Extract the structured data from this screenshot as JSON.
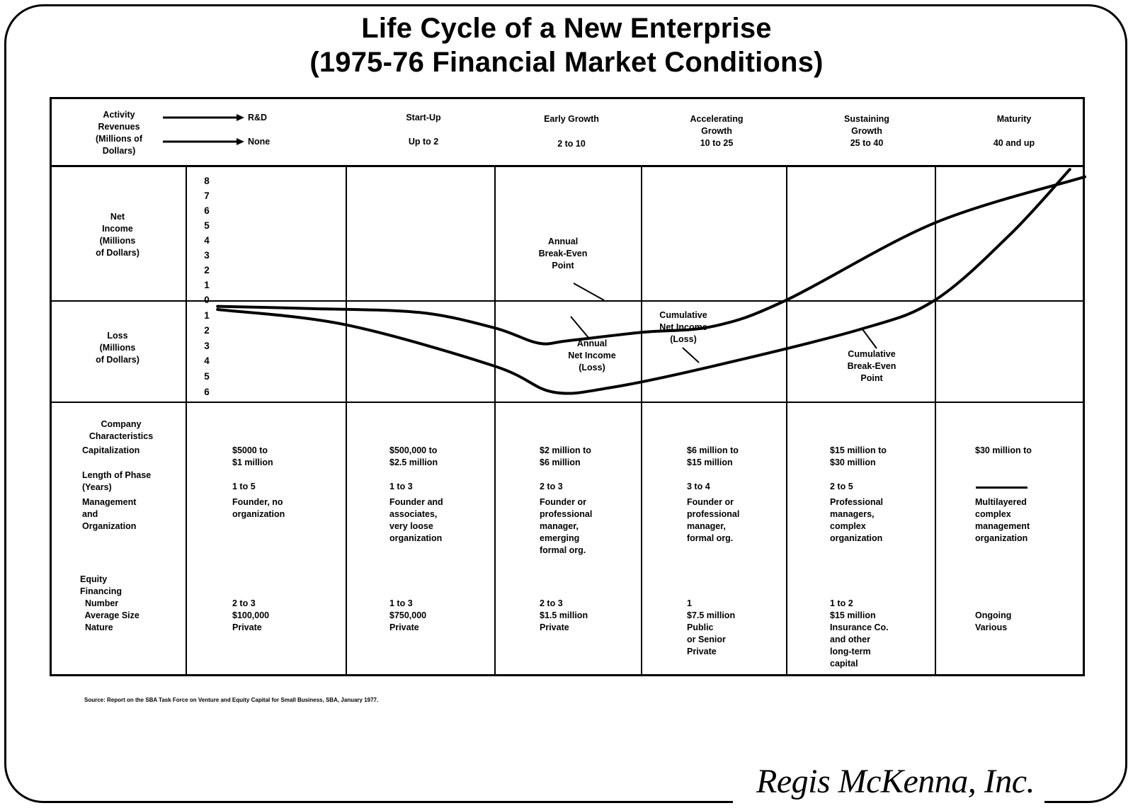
{
  "title": {
    "line1": "Life Cycle of a New Enterprise",
    "line2": "(1975-76 Financial Market Conditions)"
  },
  "header": {
    "activity_label": "Activity",
    "revenues_label": "Revenues\n(Millions of\nDollars)",
    "first_activity": "R&D",
    "first_revenue": "None"
  },
  "phases": [
    {
      "name": "R&D",
      "revenue": "None",
      "capitalization": "$5000 to\n$1 million",
      "length": "1 to 5",
      "management": "Founder, no\norganization",
      "equity": "2 to 3\n$100,000\nPrivate"
    },
    {
      "name": "Start-Up",
      "revenue": "Up to 2",
      "capitalization": "$500,000 to\n$2.5 million",
      "length": "1 to 3",
      "management": "Founder and\nassociates,\nvery loose\norganization",
      "equity": "1 to 3\n$750,000\nPrivate"
    },
    {
      "name": "Early Growth",
      "revenue": "2 to 10",
      "capitalization": "$2 million to\n$6 million",
      "length": "2 to 3",
      "management": "Founder or\nprofessional\nmanager,\nemerging\nformal org.",
      "equity": "2 to 3\n$1.5 million\nPrivate"
    },
    {
      "name": "Accelerating\nGrowth",
      "revenue": "10 to 25",
      "capitalization": "$6 million to\n$15 million",
      "length": "3 to 4",
      "management": "Founder or\nprofessional\nmanager,\nformal org.",
      "equity": "1\n$7.5 million\nPublic\nor Senior\nPrivate"
    },
    {
      "name": "Sustaining\nGrowth",
      "revenue": "25 to 40",
      "capitalization": "$15 million to\n$30 million",
      "length": "2 to 5",
      "management": "Professional\nmanagers,\ncomplex\norganization",
      "equity": "1 to 2\n$15 million\nInsurance Co.\nand other\nlong-term\ncapital"
    },
    {
      "name": "Maturity",
      "revenue": "40 and up",
      "capitalization": "$30 million to",
      "length": "",
      "management": "Multilayered\ncomplex\nmanagement\norganization",
      "equity": "Ongoing\nVarious"
    }
  ],
  "row_labels": {
    "net_income": "Net\nIncome\n(Millions\nof Dollars)",
    "loss": "Loss\n(Millions\nof Dollars)",
    "company_characteristics": "Company\nCharacteristics",
    "capitalization": "Capitalization",
    "length": "Length of Phase\n(Years)",
    "management": "Management\nand\nOrganization",
    "equity": "Equity\nFinancing\n  Number\n  Average Size\n  Nature"
  },
  "chart_data": {
    "type": "line",
    "title": "Life Cycle of a New Enterprise (1975-76 Financial Market Conditions)",
    "y_upper_ticks": [
      "8",
      "7",
      "6",
      "5",
      "4",
      "3",
      "2",
      "1",
      "0"
    ],
    "y_lower_ticks": [
      "1",
      "2",
      "3",
      "4",
      "5",
      "6"
    ],
    "y_upper_label": "Net Income (Millions of Dollars)",
    "y_lower_label": "Loss (Millions of Dollars)",
    "ylim": [
      -6,
      9
    ],
    "x_categories": [
      "R&D",
      "Start-Up",
      "Early Growth",
      "Accelerating Growth",
      "Sustaining Growth",
      "Maturity"
    ],
    "xlim": [
      0,
      6
    ],
    "series": [
      {
        "name": "Annual Net Income (Loss)",
        "points": [
          [
            0.2,
            -0.4
          ],
          [
            0.8,
            -0.55
          ],
          [
            1.5,
            -0.8
          ],
          [
            2.0,
            -1.8
          ],
          [
            2.3,
            -2.8
          ],
          [
            2.5,
            -2.65
          ],
          [
            3.0,
            -2.1
          ],
          [
            3.5,
            -1.7
          ],
          [
            4.0,
            0.0
          ],
          [
            5.0,
            5.2
          ],
          [
            6.0,
            8.3
          ]
        ]
      },
      {
        "name": "Cumulative Net Income (Loss)",
        "points": [
          [
            0.2,
            -0.6
          ],
          [
            1.0,
            -1.6
          ],
          [
            2.0,
            -4.3
          ],
          [
            2.4,
            -6.0
          ],
          [
            2.8,
            -5.7
          ],
          [
            3.5,
            -4.3
          ],
          [
            4.5,
            -1.9
          ],
          [
            5.0,
            0.0
          ],
          [
            5.5,
            4.4
          ],
          [
            5.9,
            8.8
          ]
        ]
      }
    ],
    "annotations": [
      {
        "text": "Annual\nBreak-Even\nPoint"
      },
      {
        "text": "Annual\nNet Income\n(Loss)"
      },
      {
        "text": "Cumulative\nNet Income\n(Loss)"
      },
      {
        "text": "Cumulative\nBreak-Even\nPoint"
      }
    ]
  },
  "source": "Source: Report on the SBA Task Force on Venture and Equity Capital for Small Business, SBA, January 1977.",
  "logo": "Regis McKenna, Inc.",
  "colors": {
    "ink": "#000000",
    "paper": "#ffffff"
  }
}
